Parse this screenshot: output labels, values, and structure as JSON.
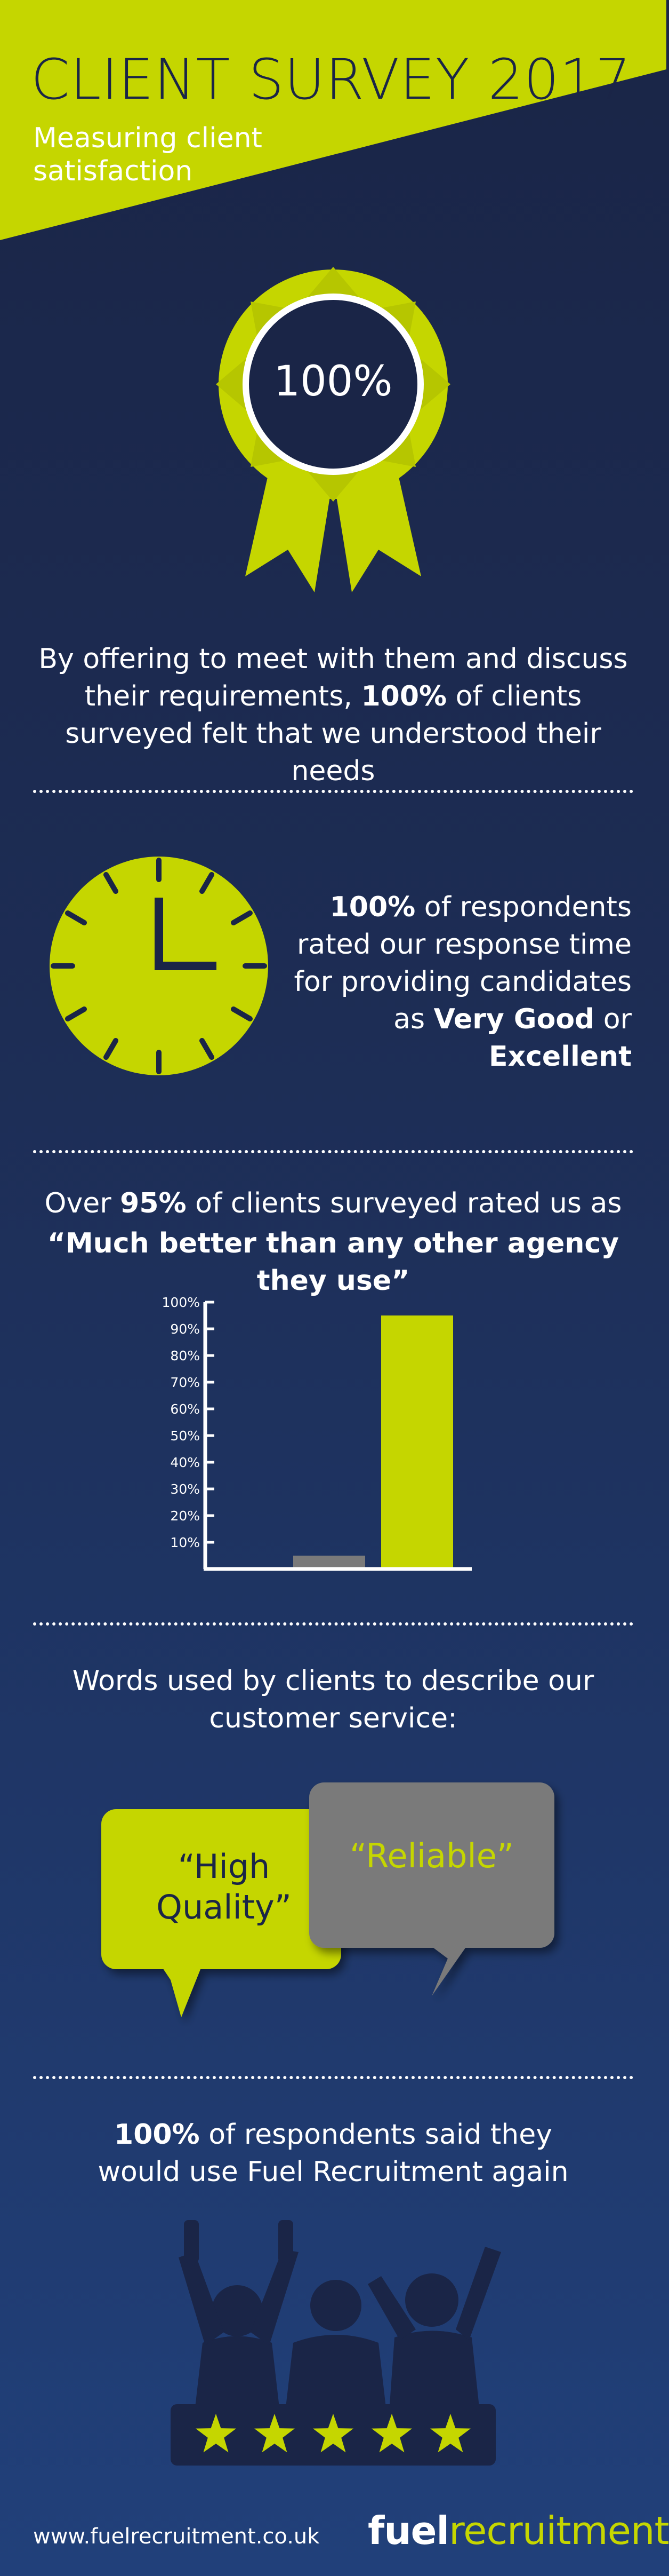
{
  "header": {
    "title": "CLIENT SURVEY 2017",
    "subtitle": "Measuring client satisfaction"
  },
  "rosette": {
    "value": "100%",
    "caption_part1": "By offering to meet with them and discuss their requirements, ",
    "caption_bold": "100%",
    "caption_part2": " of clients surveyed felt that we understood their needs"
  },
  "response": {
    "bold1": "100%",
    "text1": " of respondents rated our response time for providing candidates as ",
    "bold2": "Very Good",
    "text2": " or ",
    "bold3": "Excellent"
  },
  "agency": {
    "text1": "Over ",
    "bold1": "95%",
    "text2": " of clients surveyed rated us as",
    "quote": "“Much better than any other agency they use”"
  },
  "chart_data": {
    "type": "bar",
    "categories": [
      "",
      ""
    ],
    "values": [
      5,
      95
    ],
    "colors": [
      "#7a7a7a",
      "#c5d600"
    ],
    "ylim": [
      0,
      100
    ],
    "ytick_labels": [
      "10%",
      "20%",
      "30%",
      "40%",
      "50%",
      "60%",
      "70%",
      "80%",
      "90%",
      "100%"
    ],
    "title": "",
    "xlabel": "",
    "ylabel": ""
  },
  "words": {
    "heading": "Words used by clients to describe our customer service:",
    "quote1": "“High Quality”",
    "quote2": "“Reliable”"
  },
  "again": {
    "bold": "100%",
    "text": " of respondents said they would use Fuel Recruitment again"
  },
  "rating": {
    "stars": 5
  },
  "footer": {
    "url": "www.fuelrecruitment.co.uk",
    "logo_part1": "fuel",
    "logo_part2": "recruitment"
  },
  "colors": {
    "accent": "#c5d600",
    "navy": "#1a2547",
    "grey": "#7a7a7a"
  }
}
